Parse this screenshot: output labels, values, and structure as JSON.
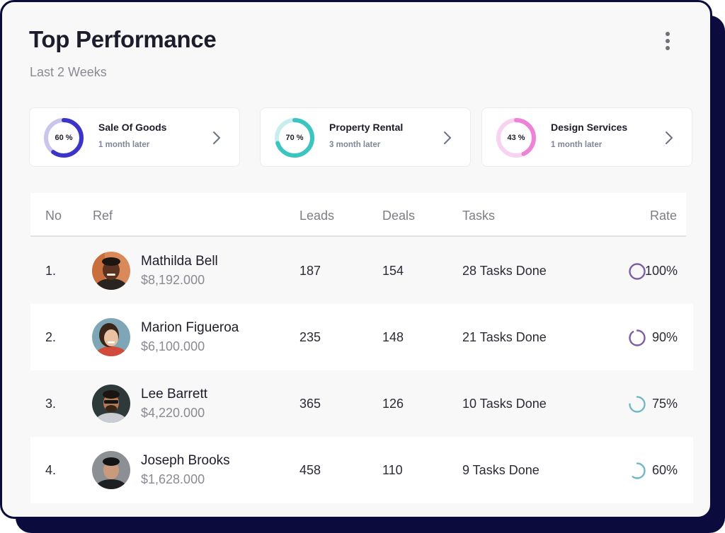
{
  "header": {
    "title": "Top Performance",
    "subtitle": "Last 2 Weeks",
    "menu_icon": "more-vertical-icon"
  },
  "stats": [
    {
      "percent_label": "60 %",
      "percent": 60,
      "title": "Sale Of Goods",
      "subtitle": "1 month later",
      "color": "#3b34c9",
      "track": "#c9c5ec"
    },
    {
      "percent_label": "70 %",
      "percent": 70,
      "title": "Property Rental",
      "subtitle": "3 month later",
      "color": "#3cc4c0",
      "track": "#c7eeed"
    },
    {
      "percent_label": "43 %",
      "percent": 43,
      "title": "Design Services",
      "subtitle": "1 month later",
      "color": "#ee82d6",
      "track": "#f8d3f0"
    }
  ],
  "table": {
    "columns": [
      "No",
      "Ref",
      "Leads",
      "Deals",
      "Tasks",
      "Rate"
    ],
    "rows": [
      {
        "no": "1.",
        "name": "Mathilda Bell",
        "amount": "$8,192.000",
        "leads": "187",
        "deals": "154",
        "tasks": "28 Tasks Done",
        "rate": "100%",
        "rate_value": 100,
        "rate_color": "#7b5ea7"
      },
      {
        "no": "2.",
        "name": "Marion Figueroa",
        "amount": "$6,100.000",
        "leads": "235",
        "deals": "148",
        "tasks": "21 Tasks Done",
        "rate": "90%",
        "rate_value": 90,
        "rate_color": "#7b5ea7"
      },
      {
        "no": "3.",
        "name": "Lee Barrett",
        "amount": "$4,220.000",
        "leads": "365",
        "deals": "126",
        "tasks": "10 Tasks Done",
        "rate": "75%",
        "rate_value": 75,
        "rate_color": "#6fb8c4"
      },
      {
        "no": "4.",
        "name": "Joseph Brooks",
        "amount": "$1,628.000",
        "leads": "458",
        "deals": "110",
        "tasks": "9 Tasks Done",
        "rate": "60%",
        "rate_value": 60,
        "rate_color": "#6fb8c4"
      }
    ]
  },
  "colors": {
    "frame": "#0b0c3d",
    "card_bg": "#f8f8f9"
  }
}
